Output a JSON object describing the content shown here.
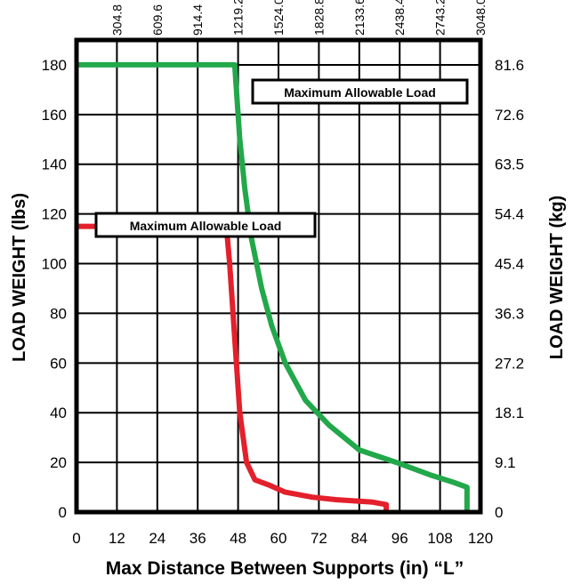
{
  "chart_data": {
    "type": "line",
    "xlabel": "Max Distance Between Supports (in) “L”",
    "ylabel": "LOAD WEIGHT (lbs)",
    "ylabel_right": "LOAD WEIGHT (kg)",
    "xlim": [
      0,
      120
    ],
    "ylim": [
      0,
      190
    ],
    "x_ticks": [
      "0",
      "12",
      "24",
      "36",
      "48",
      "60",
      "72",
      "84",
      "96",
      "108",
      "120"
    ],
    "y_ticks": [
      "0",
      "20",
      "40",
      "60",
      "80",
      "100",
      "120",
      "140",
      "160",
      "180"
    ],
    "y_ticks_right": [
      "0",
      "9.1",
      "18.1",
      "27.2",
      "36.3",
      "45.4",
      "54.4",
      "63.5",
      "72.6",
      "81.6"
    ],
    "x_ticks_top": [
      "304.8",
      "609.6",
      "914.4",
      "1219.2",
      "1524.0",
      "1828.8",
      "2133.6",
      "2438.4",
      "2743.2",
      "3048.0"
    ],
    "grid": true,
    "series": [
      {
        "label": "Maximum Allowable Load",
        "color": "#22a84a",
        "x": [
          0,
          47,
          47.5,
          48.5,
          50,
          52,
          55,
          58,
          62,
          68,
          75,
          84,
          95,
          105,
          112,
          116,
          116
        ],
        "y": [
          180,
          180,
          170,
          150,
          130,
          110,
          90,
          75,
          60,
          45,
          35,
          25,
          20,
          15,
          12,
          10,
          0
        ]
      },
      {
        "label": "Maximum Allowable Load",
        "color": "#e3202b",
        "x": [
          0,
          44.5,
          45.5,
          46.5,
          47.5,
          48.5,
          49.5,
          50.5,
          53,
          57,
          62,
          70,
          77,
          88,
          92,
          92
        ],
        "y": [
          115,
          115,
          100,
          80,
          60,
          40,
          30,
          20,
          13,
          11,
          8,
          6,
          5,
          4,
          3,
          0
        ]
      }
    ]
  }
}
